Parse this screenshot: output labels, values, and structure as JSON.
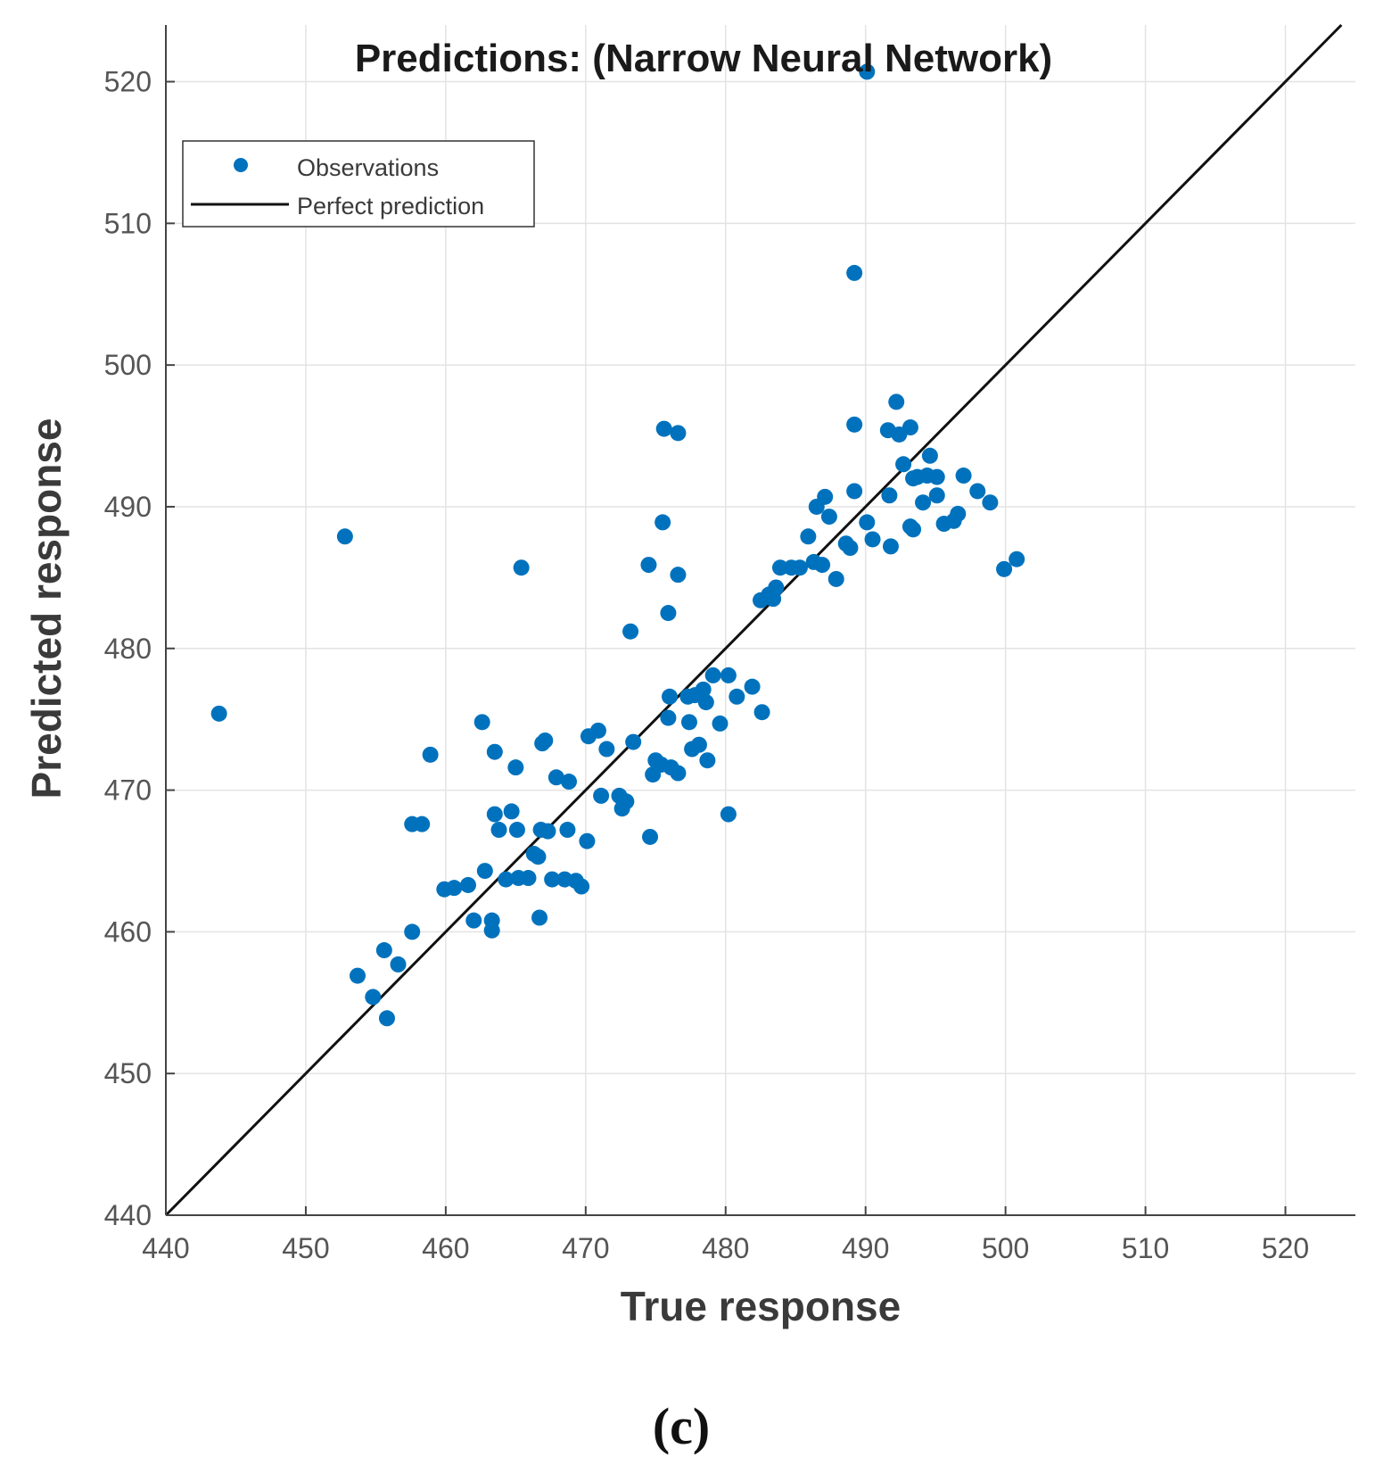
{
  "chart_data": {
    "type": "scatter",
    "title": "Predictions: (Narrow Neural Network)",
    "xlabel": "True response",
    "ylabel": "Predicted response",
    "xlim": [
      440,
      525
    ],
    "ylim": [
      440,
      524
    ],
    "xticks": [
      440,
      450,
      460,
      470,
      480,
      490,
      500,
      510,
      520
    ],
    "yticks": [
      440,
      450,
      460,
      470,
      480,
      490,
      500,
      510,
      520
    ],
    "grid": true,
    "legend": {
      "position": "top-left",
      "entries": [
        {
          "label": "Observations",
          "kind": "marker"
        },
        {
          "label": "Perfect prediction",
          "kind": "line"
        }
      ]
    },
    "colors": {
      "observations": "#0072BD",
      "perfect_prediction": "#111111",
      "grid": "#e3e3e3"
    },
    "series": [
      {
        "name": "Observations",
        "points": [
          [
            443.8,
            475.4
          ],
          [
            452.8,
            487.9
          ],
          [
            453.7,
            456.9
          ],
          [
            454.8,
            455.4
          ],
          [
            455.6,
            458.7
          ],
          [
            455.8,
            453.9
          ],
          [
            456.6,
            457.7
          ],
          [
            457.6,
            460.0
          ],
          [
            457.6,
            467.6
          ],
          [
            458.3,
            467.6
          ],
          [
            458.9,
            472.5
          ],
          [
            459.9,
            463.0
          ],
          [
            460.6,
            463.1
          ],
          [
            461.6,
            463.3
          ],
          [
            462.0,
            460.8
          ],
          [
            462.6,
            474.8
          ],
          [
            462.8,
            464.3
          ],
          [
            463.3,
            460.8
          ],
          [
            463.3,
            460.1
          ],
          [
            463.5,
            472.7
          ],
          [
            463.5,
            468.3
          ],
          [
            463.8,
            467.2
          ],
          [
            464.3,
            463.7
          ],
          [
            464.7,
            468.5
          ],
          [
            465.0,
            471.6
          ],
          [
            465.1,
            467.2
          ],
          [
            465.2,
            463.8
          ],
          [
            465.4,
            485.7
          ],
          [
            465.9,
            463.8
          ],
          [
            466.3,
            465.5
          ],
          [
            466.6,
            465.3
          ],
          [
            466.7,
            461.0
          ],
          [
            466.8,
            467.2
          ],
          [
            466.9,
            473.3
          ],
          [
            467.1,
            473.5
          ],
          [
            467.3,
            467.1
          ],
          [
            467.6,
            463.7
          ],
          [
            467.9,
            470.9
          ],
          [
            468.5,
            463.7
          ],
          [
            468.7,
            467.2
          ],
          [
            468.8,
            470.6
          ],
          [
            469.3,
            463.6
          ],
          [
            469.7,
            463.2
          ],
          [
            470.1,
            466.4
          ],
          [
            470.2,
            473.8
          ],
          [
            470.9,
            474.2
          ],
          [
            471.1,
            469.6
          ],
          [
            471.5,
            472.9
          ],
          [
            472.4,
            469.6
          ],
          [
            472.6,
            468.7
          ],
          [
            472.9,
            469.2
          ],
          [
            473.2,
            481.2
          ],
          [
            473.4,
            473.4
          ],
          [
            474.5,
            485.9
          ],
          [
            474.6,
            466.7
          ],
          [
            474.8,
            471.1
          ],
          [
            475.0,
            472.1
          ],
          [
            475.4,
            471.8
          ],
          [
            475.5,
            488.9
          ],
          [
            475.6,
            495.5
          ],
          [
            475.9,
            482.5
          ],
          [
            475.9,
            475.1
          ],
          [
            476.0,
            476.6
          ],
          [
            476.1,
            471.6
          ],
          [
            476.6,
            495.2
          ],
          [
            476.6,
            485.2
          ],
          [
            476.6,
            471.2
          ],
          [
            477.3,
            476.6
          ],
          [
            477.4,
            474.8
          ],
          [
            477.6,
            472.9
          ],
          [
            477.8,
            476.7
          ],
          [
            478.1,
            473.2
          ],
          [
            478.4,
            477.1
          ],
          [
            478.6,
            476.2
          ],
          [
            478.7,
            472.1
          ],
          [
            479.1,
            478.1
          ],
          [
            479.6,
            474.7
          ],
          [
            480.2,
            478.1
          ],
          [
            480.2,
            468.3
          ],
          [
            480.8,
            476.6
          ],
          [
            481.9,
            477.3
          ],
          [
            482.5,
            483.4
          ],
          [
            482.6,
            475.5
          ],
          [
            483.1,
            483.8
          ],
          [
            483.4,
            483.5
          ],
          [
            483.6,
            484.3
          ],
          [
            483.9,
            485.7
          ],
          [
            484.7,
            485.7
          ],
          [
            485.3,
            485.7
          ],
          [
            485.9,
            487.9
          ],
          [
            486.3,
            486.1
          ],
          [
            486.5,
            490.0
          ],
          [
            486.9,
            485.9
          ],
          [
            487.1,
            490.7
          ],
          [
            487.4,
            489.3
          ],
          [
            487.9,
            484.9
          ],
          [
            488.6,
            487.4
          ],
          [
            488.9,
            487.1
          ],
          [
            489.2,
            495.8
          ],
          [
            489.2,
            491.1
          ],
          [
            489.2,
            506.5
          ],
          [
            490.1,
            520.7
          ],
          [
            490.1,
            488.9
          ],
          [
            490.5,
            487.7
          ],
          [
            491.6,
            495.4
          ],
          [
            491.7,
            490.8
          ],
          [
            491.8,
            487.2
          ],
          [
            492.2,
            497.4
          ],
          [
            492.4,
            495.1
          ],
          [
            492.7,
            493.0
          ],
          [
            493.2,
            495.6
          ],
          [
            493.2,
            488.6
          ],
          [
            493.4,
            492.0
          ],
          [
            493.4,
            488.4
          ],
          [
            493.7,
            492.1
          ],
          [
            494.1,
            490.3
          ],
          [
            494.4,
            492.2
          ],
          [
            494.6,
            493.6
          ],
          [
            495.1,
            492.1
          ],
          [
            495.1,
            490.8
          ],
          [
            495.6,
            488.8
          ],
          [
            496.3,
            489.0
          ],
          [
            496.6,
            489.5
          ],
          [
            497.0,
            492.2
          ],
          [
            498.0,
            491.1
          ],
          [
            498.9,
            490.3
          ],
          [
            499.9,
            485.6
          ],
          [
            500.8,
            486.3
          ]
        ]
      },
      {
        "name": "Perfect prediction",
        "points": [
          [
            440,
            440
          ],
          [
            525,
            525
          ]
        ]
      }
    ]
  },
  "panel_label": "(c)"
}
